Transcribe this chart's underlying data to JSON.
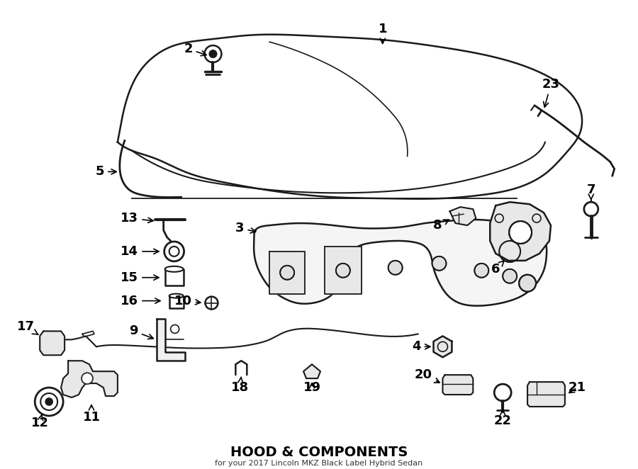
{
  "title": "HOOD & COMPONENTS",
  "subtitle": "for your 2017 Lincoln MKZ Black Label Hybrid Sedan",
  "bg_color": "#ffffff",
  "line_color": "#1a1a1a",
  "figsize": [
    9.0,
    6.62
  ],
  "dpi": 100,
  "xlim": [
    0,
    900
  ],
  "ylim": [
    0,
    662
  ]
}
